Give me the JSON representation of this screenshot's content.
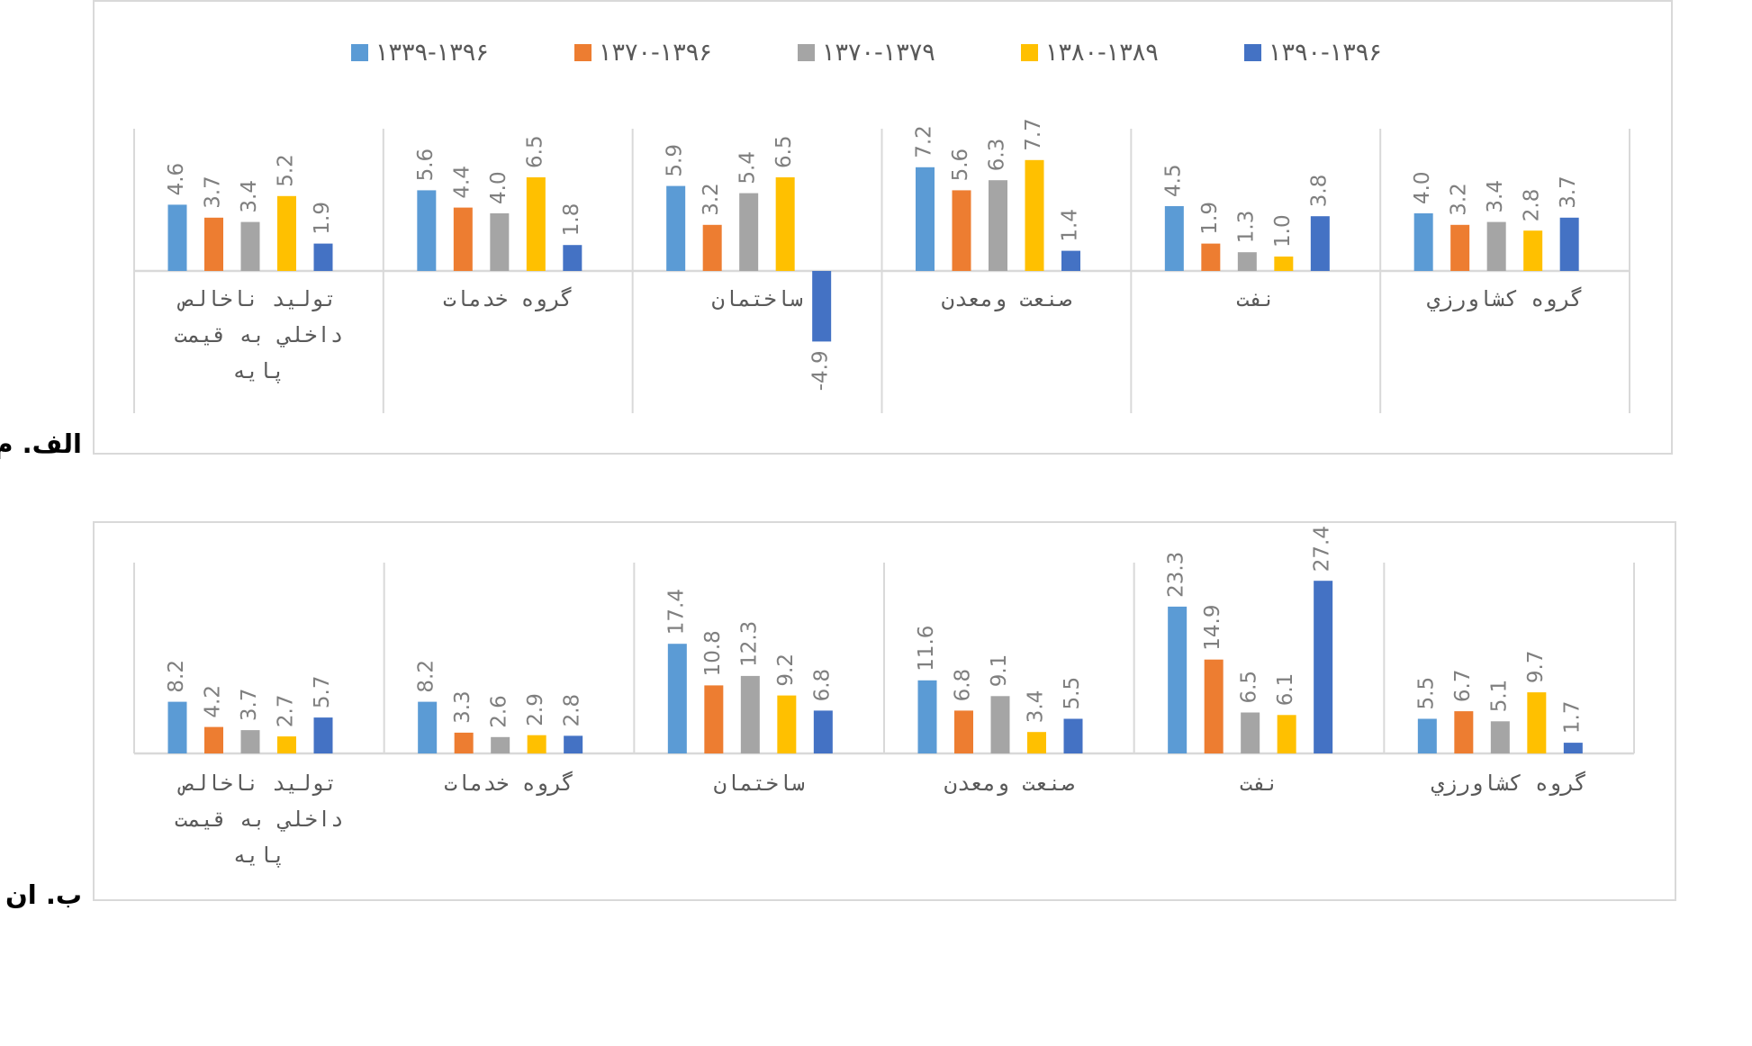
{
  "colors": {
    "series": [
      "#5b9bd5",
      "#ed7d31",
      "#a5a5a5",
      "#ffc000",
      "#4472c4"
    ],
    "grid": "#d9d9d9",
    "data_label": "#7f7f7f",
    "category_label": "#595959"
  },
  "panels": {
    "a_label": "الف. م",
    "b_label": "ب. ان"
  },
  "chart_data": [
    {
      "type": "bar",
      "title": "",
      "xlabel": "",
      "ylabel": "",
      "legend_position": "top",
      "grid": true,
      "categories": [
        "توليد ناخالص داخلي به قيمت پايه",
        "گروه خدمات",
        "ساختمان",
        "صنعت ومعدن",
        "نفت",
        "گروه كشاورزي"
      ],
      "series": [
        {
          "name": "۱۳۳۹-۱۳۹۶",
          "values": [
            4.6,
            5.6,
            5.9,
            7.2,
            4.5,
            4.0
          ]
        },
        {
          "name": "۱۳۷۰-۱۳۹۶",
          "values": [
            3.7,
            4.4,
            3.2,
            5.6,
            1.9,
            3.2
          ]
        },
        {
          "name": "۱۳۷۰-۱۳۷۹",
          "values": [
            3.4,
            4.0,
            5.4,
            6.3,
            1.3,
            3.4
          ]
        },
        {
          "name": "۱۳۸۰-۱۳۸۹",
          "values": [
            5.2,
            6.5,
            6.5,
            7.7,
            1.0,
            2.8
          ]
        },
        {
          "name": "۱۳۹۰-۱۳۹۶",
          "values": [
            1.9,
            1.8,
            -4.9,
            1.4,
            3.8,
            3.7
          ]
        }
      ],
      "ylim": [
        -10,
        10
      ]
    },
    {
      "type": "bar",
      "title": "",
      "xlabel": "",
      "ylabel": "",
      "legend_position": "none",
      "grid": true,
      "categories": [
        "توليد ناخالص داخلي به قيمت پايه",
        "گروه خدمات",
        "ساختمان",
        "صنعت ومعدن",
        "نفت",
        "گروه كشاورزي"
      ],
      "series": [
        {
          "values": [
            8.2,
            8.2,
            17.4,
            11.6,
            23.3,
            5.5
          ]
        },
        {
          "values": [
            4.2,
            3.3,
            10.8,
            6.8,
            14.9,
            6.7
          ]
        },
        {
          "values": [
            3.7,
            2.6,
            12.3,
            9.1,
            6.5,
            5.1
          ]
        },
        {
          "values": [
            2.7,
            2.9,
            9.2,
            3.4,
            6.1,
            9.7
          ]
        },
        {
          "values": [
            5.7,
            2.8,
            6.8,
            5.5,
            27.4,
            1.7
          ]
        }
      ],
      "ylim": [
        0,
        30
      ]
    }
  ]
}
